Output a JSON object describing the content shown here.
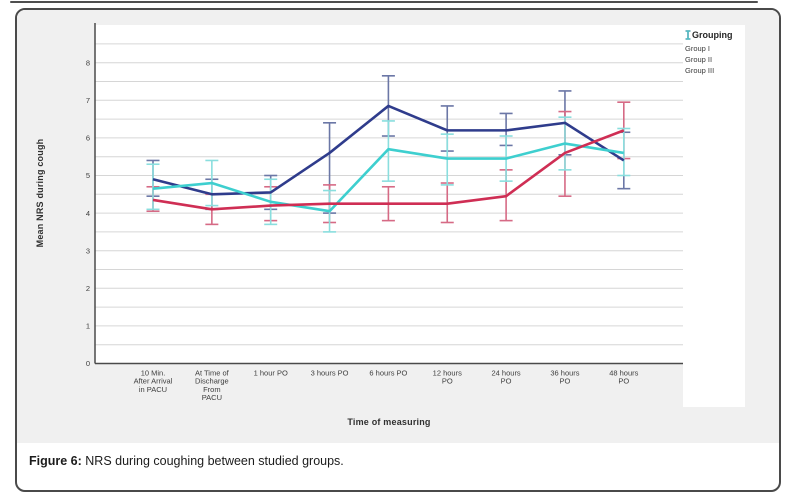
{
  "caption": {
    "label": "Figure 6:",
    "text": "NRS during coughing between studied groups."
  },
  "chart_data": {
    "type": "line",
    "title": "",
    "x_title": "Time of measuring",
    "y_title": "Mean NRS during cough",
    "legend_title": "Grouping",
    "legend_position": "top-right",
    "grid": true,
    "y_min": 0,
    "y_max": 8.5,
    "y_tick_labels": [
      0,
      1,
      2,
      3,
      4,
      5,
      6,
      7,
      8
    ],
    "y_grid_step": 0.5,
    "error_bars": true,
    "categories": [
      [
        "10 Min.",
        "After Arrival",
        "in PACU"
      ],
      [
        "At Time of",
        "Discharge",
        "From",
        "PACU"
      ],
      [
        "1 hour PO"
      ],
      [
        "3 hours PO"
      ],
      [
        "6 hours PO"
      ],
      [
        "12 hours",
        "PO"
      ],
      [
        "24 hours",
        "PO"
      ],
      [
        "36 hours",
        "PO"
      ],
      [
        "48 hours",
        "PO"
      ]
    ],
    "series": [
      {
        "name": "Group I",
        "color": "#2f3c8c",
        "error_color": "#6b77a6",
        "values": [
          4.9,
          4.5,
          4.55,
          5.6,
          6.85,
          6.2,
          6.2,
          6.4,
          5.4
        ],
        "error_ranges": [
          [
            4.45,
            5.4
          ],
          [
            4.1,
            4.9
          ],
          [
            4.1,
            5.0
          ],
          [
            4.0,
            6.4
          ],
          [
            6.05,
            7.65
          ],
          [
            5.65,
            6.85
          ],
          [
            5.8,
            6.65
          ],
          [
            5.55,
            7.25
          ],
          [
            4.65,
            6.15
          ]
        ]
      },
      {
        "name": "Group II",
        "color": "#cf2e54",
        "error_color": "#d66a85",
        "values": [
          4.35,
          4.1,
          4.2,
          4.25,
          4.25,
          4.25,
          4.45,
          5.6,
          6.2
        ],
        "error_ranges": [
          [
            4.05,
            4.7
          ],
          [
            3.7,
            4.5
          ],
          [
            3.8,
            4.7
          ],
          [
            3.75,
            4.75
          ],
          [
            3.8,
            4.7
          ],
          [
            3.75,
            4.8
          ],
          [
            3.8,
            5.15
          ],
          [
            4.45,
            6.7
          ],
          [
            5.45,
            6.95
          ]
        ]
      },
      {
        "name": "Group III",
        "color": "#3ecfcf",
        "error_color": "#8adede",
        "values": [
          4.65,
          4.8,
          4.3,
          4.05,
          5.7,
          5.45,
          5.45,
          5.85,
          5.6
        ],
        "error_ranges": [
          [
            4.1,
            5.3
          ],
          [
            4.2,
            5.4
          ],
          [
            3.7,
            4.9
          ],
          [
            3.5,
            4.6
          ],
          [
            4.85,
            6.45
          ],
          [
            4.75,
            6.1
          ],
          [
            4.85,
            6.05
          ],
          [
            5.15,
            6.55
          ],
          [
            5.0,
            6.25
          ]
        ]
      }
    ]
  }
}
